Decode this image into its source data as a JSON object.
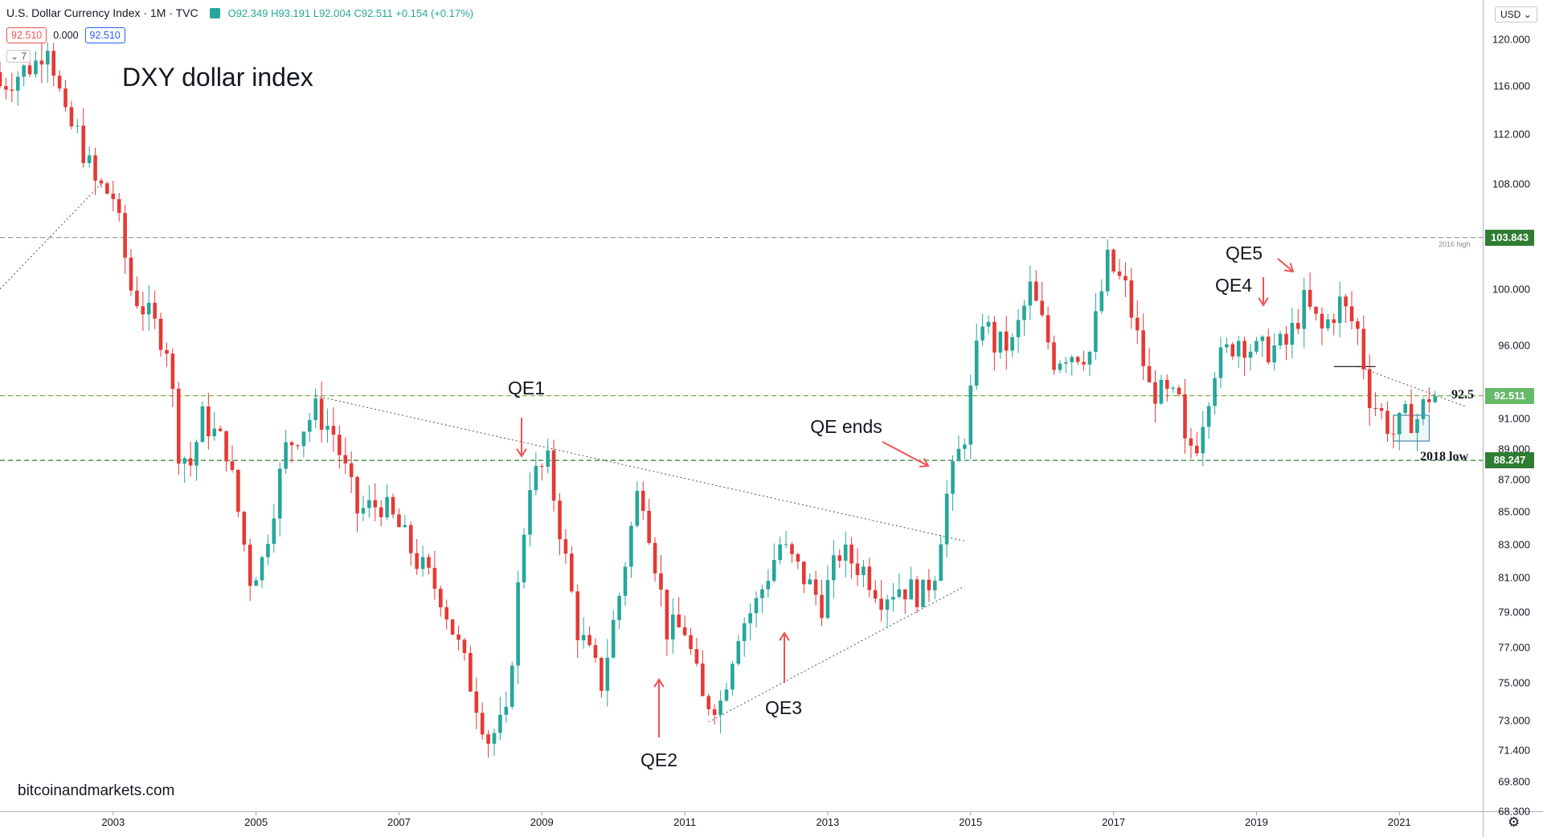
{
  "header": {
    "symbol": "U.S. Dollar Currency Index · 1M · TVC",
    "ohlc": "O92.349 H93.191 L92.004 C92.511 +0.154 (+0.17%)"
  },
  "quotes": {
    "bid": "92.510",
    "spread": "0.000",
    "ask": "92.510"
  },
  "collapse_label": "7",
  "currency_button": "USD",
  "watermark": "bitcoinandmarkets.com",
  "colors": {
    "up": "#26a69a",
    "down": "#e53935",
    "arrow": "#ef5350",
    "level_line": "#2e7d32",
    "current_tag": "#66bb6a"
  },
  "icons": {
    "collapse": "chevron-down-icon",
    "currency_dropdown": "chevron-down-icon",
    "settings": "gear-icon"
  },
  "chart_data": {
    "type": "candlestick",
    "title": "DXY dollar index",
    "interval": "1M",
    "scale": "logarithmic",
    "x_range": [
      "2001-06",
      "2022-03"
    ],
    "ylim": [
      68.3,
      123.5
    ],
    "y_ticks": [
      120.0,
      116.0,
      112.0,
      108.0,
      100.0,
      96.0,
      91.0,
      89.0,
      87.0,
      85.0,
      83.0,
      81.0,
      79.0,
      77.0,
      75.0,
      73.0,
      71.4,
      69.8,
      68.3
    ],
    "y_tick_labels": [
      "120.000",
      "116.000",
      "112.000",
      "108.000",
      "100.000",
      "96.000",
      "91.000",
      "89.000",
      "87.000",
      "85.000",
      "83.000",
      "81.000",
      "79.000",
      "77.000",
      "75.000",
      "73.000",
      "71.400",
      "69.800",
      "68.300"
    ],
    "x_ticks": [
      "2003",
      "2005",
      "2007",
      "2009",
      "2011",
      "2013",
      "2015",
      "2017",
      "2019",
      "2021"
    ],
    "anchor_points": [
      {
        "date": "2001-06",
        "price": 116.0
      },
      {
        "date": "2001-09",
        "price": 117.0
      },
      {
        "date": "2001-12",
        "price": 118.0
      },
      {
        "date": "2002-02",
        "price": 120.0
      },
      {
        "date": "2002-05",
        "price": 113.0
      },
      {
        "date": "2002-07",
        "price": 112.0
      },
      {
        "date": "2002-10",
        "price": 108.0
      },
      {
        "date": "2003-01",
        "price": 107.0
      },
      {
        "date": "2003-04",
        "price": 100.0
      },
      {
        "date": "2003-07",
        "price": 98.0
      },
      {
        "date": "2003-10",
        "price": 96.0
      },
      {
        "date": "2003-12",
        "price": 89.0
      },
      {
        "date": "2004-02",
        "price": 88.0
      },
      {
        "date": "2004-04",
        "price": 91.0
      },
      {
        "date": "2004-08",
        "price": 89.0
      },
      {
        "date": "2004-12",
        "price": 81.0
      },
      {
        "date": "2005-02",
        "price": 82.0
      },
      {
        "date": "2005-06",
        "price": 89.0
      },
      {
        "date": "2005-11",
        "price": 91.5
      },
      {
        "date": "2006-02",
        "price": 90.0
      },
      {
        "date": "2006-06",
        "price": 85.0
      },
      {
        "date": "2006-10",
        "price": 85.5
      },
      {
        "date": "2007-01",
        "price": 84.0
      },
      {
        "date": "2007-04",
        "price": 82.0
      },
      {
        "date": "2007-08",
        "price": 80.0
      },
      {
        "date": "2007-12",
        "price": 76.0
      },
      {
        "date": "2008-04",
        "price": 72.0
      },
      {
        "date": "2008-07",
        "price": 73.0
      },
      {
        "date": "2008-10",
        "price": 84.0
      },
      {
        "date": "2008-11",
        "price": 87.0
      },
      {
        "date": "2009-02",
        "price": 88.0
      },
      {
        "date": "2009-04",
        "price": 84.0
      },
      {
        "date": "2009-07",
        "price": 78.0
      },
      {
        "date": "2009-11",
        "price": 75.0
      },
      {
        "date": "2010-02",
        "price": 80.0
      },
      {
        "date": "2010-05",
        "price": 86.0
      },
      {
        "date": "2010-06",
        "price": 86.0
      },
      {
        "date": "2010-08",
        "price": 82.0
      },
      {
        "date": "2010-10",
        "price": 78.0
      },
      {
        "date": "2011-01",
        "price": 78.0
      },
      {
        "date": "2011-04",
        "price": 74.0
      },
      {
        "date": "2011-07",
        "price": 74.0
      },
      {
        "date": "2011-10",
        "price": 78.0
      },
      {
        "date": "2012-01",
        "price": 79.5
      },
      {
        "date": "2012-05",
        "price": 83.0
      },
      {
        "date": "2012-08",
        "price": 81.5
      },
      {
        "date": "2012-12",
        "price": 79.5
      },
      {
        "date": "2013-03",
        "price": 82.5
      },
      {
        "date": "2013-07",
        "price": 81.5
      },
      {
        "date": "2013-10",
        "price": 80.0
      },
      {
        "date": "2014-01",
        "price": 80.5
      },
      {
        "date": "2014-05",
        "price": 80.0
      },
      {
        "date": "2014-07",
        "price": 81.5
      },
      {
        "date": "2014-09",
        "price": 86.0
      },
      {
        "date": "2014-12",
        "price": 90.0
      },
      {
        "date": "2015-03",
        "price": 98.0
      },
      {
        "date": "2015-05",
        "price": 96.0
      },
      {
        "date": "2015-08",
        "price": 96.0
      },
      {
        "date": "2015-11",
        "price": 100.0
      },
      {
        "date": "2016-03",
        "price": 95.0
      },
      {
        "date": "2016-05",
        "price": 95.5
      },
      {
        "date": "2016-09",
        "price": 95.5
      },
      {
        "date": "2016-12",
        "price": 102.0
      },
      {
        "date": "2017-03",
        "price": 100.0
      },
      {
        "date": "2017-07",
        "price": 93.0
      },
      {
        "date": "2017-12",
        "price": 92.0
      },
      {
        "date": "2018-01",
        "price": 89.0
      },
      {
        "date": "2018-03",
        "price": 89.5
      },
      {
        "date": "2018-06",
        "price": 94.5
      },
      {
        "date": "2018-10",
        "price": 96.5
      },
      {
        "date": "2019-01",
        "price": 95.5
      },
      {
        "date": "2019-06",
        "price": 96.0
      },
      {
        "date": "2019-09",
        "price": 99.0
      },
      {
        "date": "2019-12",
        "price": 97.0
      },
      {
        "date": "2020-03",
        "price": 99.0
      },
      {
        "date": "2020-06",
        "price": 97.0
      },
      {
        "date": "2020-08",
        "price": 92.5
      },
      {
        "date": "2020-12",
        "price": 90.0
      },
      {
        "date": "2021-02",
        "price": 91.0
      },
      {
        "date": "2021-04",
        "price": 91.0
      },
      {
        "date": "2021-06",
        "price": 92.5
      },
      {
        "date": "2021-07",
        "price": 92.5
      }
    ],
    "levels": [
      {
        "price": 103.843,
        "label": "2016 high",
        "tag": "103.843"
      },
      {
        "price": 92.511,
        "label": "92.5",
        "tag": "92.511"
      },
      {
        "price": 88.247,
        "label": "2018 low",
        "tag": "88.247"
      }
    ],
    "annotations": [
      {
        "label": "QE1",
        "date": "2008-12"
      },
      {
        "label": "QE2",
        "date": "2010-11"
      },
      {
        "label": "QE3",
        "date": "2012-09"
      },
      {
        "label": "QE ends",
        "date": "2014-10"
      },
      {
        "label": "QE4",
        "date": "2019-10"
      },
      {
        "label": "QE5",
        "date": "2020-03"
      }
    ]
  }
}
